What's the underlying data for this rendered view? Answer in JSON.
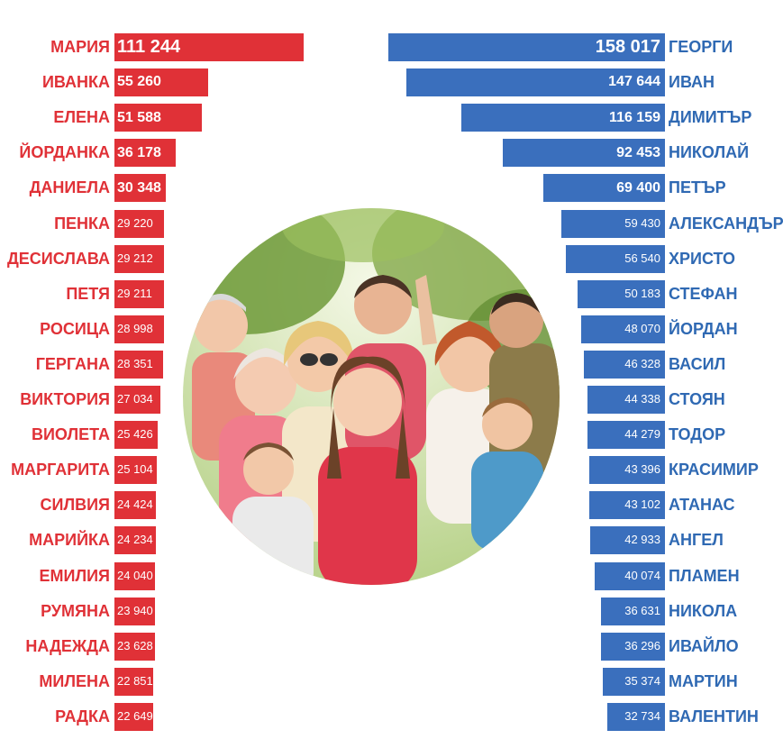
{
  "chart_data": [
    {
      "type": "bar",
      "orientation": "horizontal",
      "categories": [
        "МАРИЯ",
        "ИВАНКА",
        "ЕЛЕНА",
        "ЙОРДАНКА",
        "ДАНИЕЛА",
        "ПЕНКА",
        "ДЕСИСЛАВА",
        "ПЕТЯ",
        "РОСИЦА",
        "ГЕРГАНА",
        "ВИКТОРИЯ",
        "ВИОЛЕТА",
        "МАРГАРИТА",
        "СИЛВИЯ",
        "МАРИЙКА",
        "ЕМИЛИЯ",
        "РУМЯНА",
        "НАДЕЖДА",
        "МИЛЕНА",
        "РАДКА"
      ],
      "values": [
        111244,
        55260,
        51588,
        36178,
        30348,
        29220,
        29212,
        29211,
        28998,
        28351,
        27034,
        25426,
        25104,
        24424,
        24234,
        24040,
        23940,
        23628,
        22851,
        22649
      ],
      "value_labels": [
        "111 244",
        "55 260",
        "51 588",
        "36 178",
        "30 348",
        "29 220",
        "29 212",
        "29 211",
        "28 998",
        "28 351",
        "27 034",
        "25 426",
        "25 104",
        "24 424",
        "24 234",
        "24 040",
        "23 940",
        "23 628",
        "22 851",
        "22 649"
      ],
      "color": "#e03137",
      "bar_direction": "left-to-right"
    },
    {
      "type": "bar",
      "orientation": "horizontal",
      "categories": [
        "ГЕОРГИ",
        "ИВАН",
        "ДИМИТЪР",
        "НИКОЛАЙ",
        "ПЕТЪР",
        "АЛЕКСАНДЪР",
        "ХРИСТО",
        "СТЕФАН",
        "ЙОРДАН",
        "ВАСИЛ",
        "СТОЯН",
        "ТОДОР",
        "КРАСИМИР",
        "АТАНАС",
        "АНГЕЛ",
        "ПЛАМЕН",
        "НИКОЛА",
        "ИВАЙЛО",
        "МАРТИН",
        "ВАЛЕНТИН"
      ],
      "values": [
        158017,
        147644,
        116159,
        92453,
        69400,
        59430,
        56540,
        50183,
        48070,
        46328,
        44338,
        44279,
        43396,
        43102,
        42933,
        40074,
        36631,
        36296,
        35374,
        32734
      ],
      "value_labels": [
        "158 017",
        "147 644",
        "116 159",
        "92 453",
        "69 400",
        "59 430",
        "56 540",
        "50 183",
        "48 070",
        "46 328",
        "44 338",
        "44 279",
        "43 396",
        "43 102",
        "42 933",
        "40 074",
        "36 631",
        "36 296",
        "35 374",
        "32 734"
      ],
      "color": "#3a6fbd",
      "bar_direction": "right-to-left"
    }
  ],
  "photo": {
    "icon": "family-photo"
  }
}
